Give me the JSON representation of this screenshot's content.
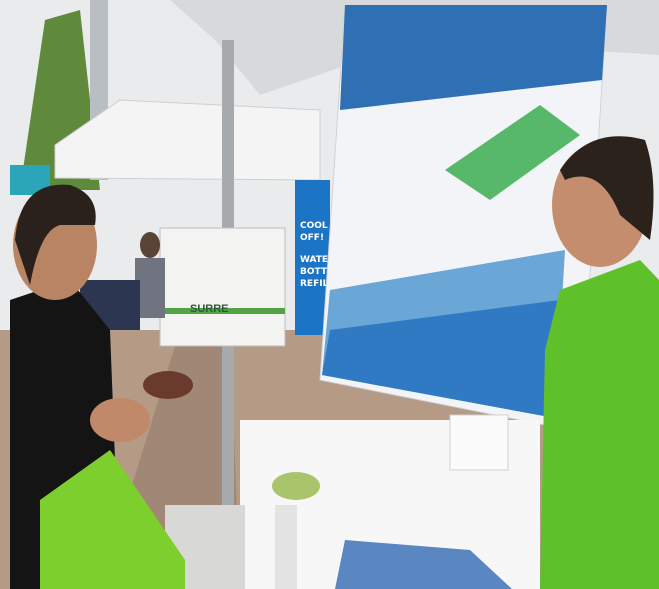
{
  "scene": {
    "sign": {
      "lines": [
        "COOL",
        "OFF!",
        "WATE",
        "BOTTL",
        "REFIL"
      ]
    },
    "cart_label": "SURRE"
  }
}
